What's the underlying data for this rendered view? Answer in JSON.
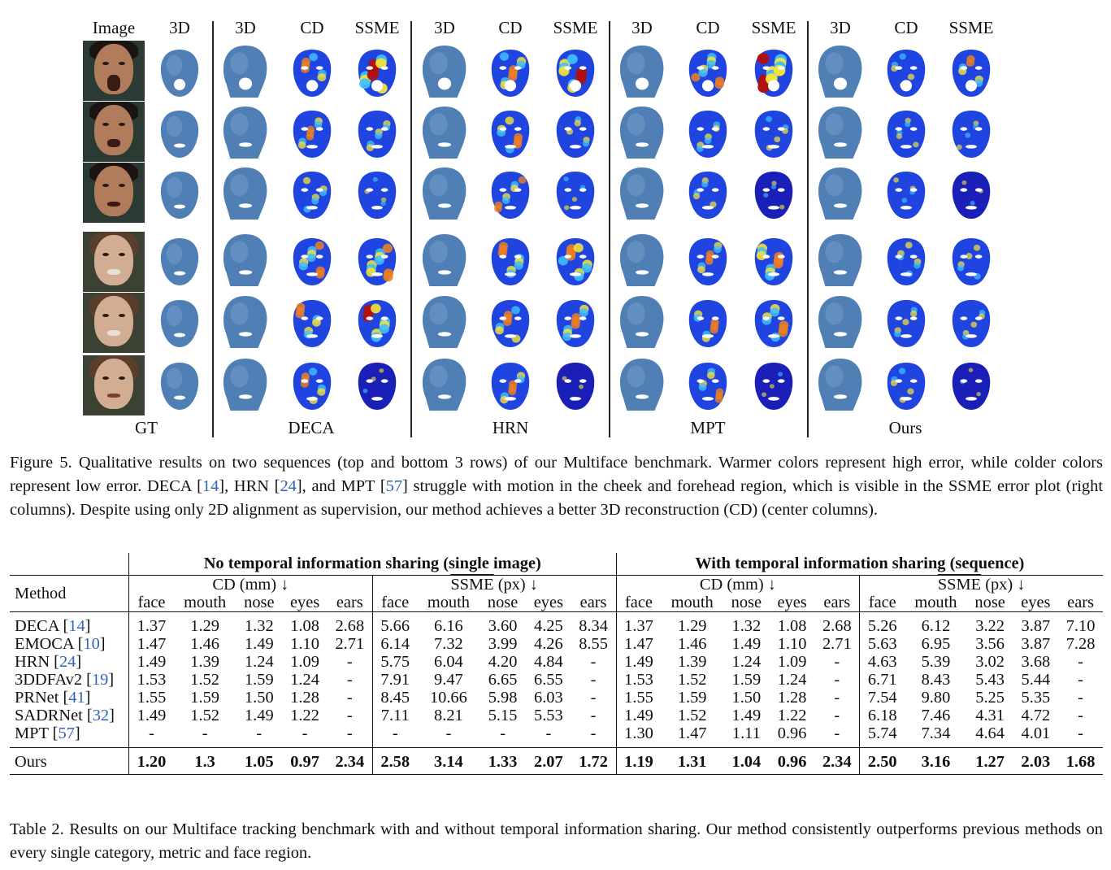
{
  "figure": {
    "column_headers": [
      "Image",
      "3D",
      "3D",
      "CD",
      "SSME",
      "3D",
      "CD",
      "SSME",
      "3D",
      "CD",
      "SSME",
      "3D",
      "CD",
      "SSME"
    ],
    "group_labels": [
      "GT",
      "DECA",
      "HRN",
      "MPT",
      "Ours"
    ],
    "caption_prefix": "Figure 5.",
    "caption_parts": [
      "Qualitative results on two sequences (top and bottom 3 rows) of our Multiface benchmark. Warmer colors represent high error, while colder colors represent low error. DECA [",
      "14",
      "], HRN [",
      "24",
      "], and MPT [",
      "57",
      "] struggle with motion in the cheek and forehead region, which is visible in the SSME error plot (right columns). Despite using only 2D alignment as supervision, our method achieves a better 3D reconstruction (CD) (center columns)."
    ],
    "colors": {
      "mesh_blue": "#4f7fb4",
      "photo_bg": "#2f3a30",
      "skin_a": "#b98a6a",
      "skin_b": "#d8b29a"
    }
  },
  "table": {
    "group_headers": [
      "No temporal information sharing (single image)",
      "With temporal information sharing (sequence)"
    ],
    "method_header": "Method",
    "cd_header": "CD (mm) ↓",
    "ssme_header_main": "SSME",
    "ssme_header_unit": " (px) ↓",
    "cd_regions": [
      "face",
      "mouth",
      "nose",
      "eyes",
      "ears"
    ],
    "ssme_regions": [
      "face",
      "mouth",
      "nose",
      "eyes",
      "ears"
    ],
    "rows": [
      {
        "name": "DECA [",
        "ref": "14",
        "close": "]",
        "single_cd": [
          "1.37",
          "1.29",
          "1.32",
          "1.08",
          "2.68"
        ],
        "single_ssme": [
          "5.66",
          "6.16",
          "3.60",
          "4.25",
          "8.34"
        ],
        "seq_cd": [
          "1.37",
          "1.29",
          "1.32",
          "1.08",
          "2.68"
        ],
        "seq_ssme": [
          "5.26",
          "6.12",
          "3.22",
          "3.87",
          "7.10"
        ]
      },
      {
        "name": "EMOCA [",
        "ref": "10",
        "close": "]",
        "single_cd": [
          "1.47",
          "1.46",
          "1.49",
          "1.10",
          "2.71"
        ],
        "single_ssme": [
          "6.14",
          "7.32",
          "3.99",
          "4.26",
          "8.55"
        ],
        "seq_cd": [
          "1.47",
          "1.46",
          "1.49",
          "1.10",
          "2.71"
        ],
        "seq_ssme": [
          "5.63",
          "6.95",
          "3.56",
          "3.87",
          "7.28"
        ]
      },
      {
        "name": "HRN [",
        "ref": "24",
        "close": "]",
        "single_cd": [
          "1.49",
          "1.39",
          "1.24",
          "1.09",
          "-"
        ],
        "single_ssme": [
          "5.75",
          "6.04",
          "4.20",
          "4.84",
          "-"
        ],
        "seq_cd": [
          "1.49",
          "1.39",
          "1.24",
          "1.09",
          "-"
        ],
        "seq_ssme": [
          "4.63",
          "5.39",
          "3.02",
          "3.68",
          "-"
        ]
      },
      {
        "name": "3DDFAv2 [",
        "ref": "19",
        "close": "]",
        "single_cd": [
          "1.53",
          "1.52",
          "1.59",
          "1.24",
          "-"
        ],
        "single_ssme": [
          "7.91",
          "9.47",
          "6.65",
          "6.55",
          "-"
        ],
        "seq_cd": [
          "1.53",
          "1.52",
          "1.59",
          "1.24",
          "-"
        ],
        "seq_ssme": [
          "6.71",
          "8.43",
          "5.43",
          "5.44",
          "-"
        ]
      },
      {
        "name": "PRNet [",
        "ref": "41",
        "close": "]",
        "single_cd": [
          "1.55",
          "1.59",
          "1.50",
          "1.28",
          "-"
        ],
        "single_ssme": [
          "8.45",
          "10.66",
          "5.98",
          "6.03",
          "-"
        ],
        "seq_cd": [
          "1.55",
          "1.59",
          "1.50",
          "1.28",
          "-"
        ],
        "seq_ssme": [
          "7.54",
          "9.80",
          "5.25",
          "5.35",
          "-"
        ]
      },
      {
        "name": "SADRNet [",
        "ref": "32",
        "close": "]",
        "single_cd": [
          "1.49",
          "1.52",
          "1.49",
          "1.22",
          "-"
        ],
        "single_ssme": [
          "7.11",
          "8.21",
          "5.15",
          "5.53",
          "-"
        ],
        "seq_cd": [
          "1.49",
          "1.52",
          "1.49",
          "1.22",
          "-"
        ],
        "seq_ssme": [
          "6.18",
          "7.46",
          "4.31",
          "4.72",
          "-"
        ]
      },
      {
        "name": "MPT [",
        "ref": "57",
        "close": "]",
        "single_cd": [
          "-",
          "-",
          "-",
          "-",
          "-"
        ],
        "single_ssme": [
          "-",
          "-",
          "-",
          "-",
          "-"
        ],
        "seq_cd": [
          "1.30",
          "1.47",
          "1.11",
          "0.96",
          "-"
        ],
        "seq_ssme": [
          "5.74",
          "7.34",
          "4.64",
          "4.01",
          "-"
        ]
      }
    ],
    "ours": {
      "name": "Ours",
      "single_cd": [
        "1.20",
        "1.3",
        "1.05",
        "0.97",
        "2.34"
      ],
      "single_ssme": [
        "2.58",
        "3.14",
        "1.33",
        "2.07",
        "1.72"
      ],
      "seq_cd": [
        "1.19",
        "1.31",
        "1.04",
        "0.96",
        "2.34"
      ],
      "seq_ssme": [
        "2.50",
        "3.16",
        "1.27",
        "2.03",
        "1.68"
      ]
    },
    "caption_prefix": "Table 2.",
    "caption_text": "Results on our Multiface tracking benchmark with and without temporal information sharing. Our method consistently outperforms previous methods on every single category, metric and face region."
  }
}
